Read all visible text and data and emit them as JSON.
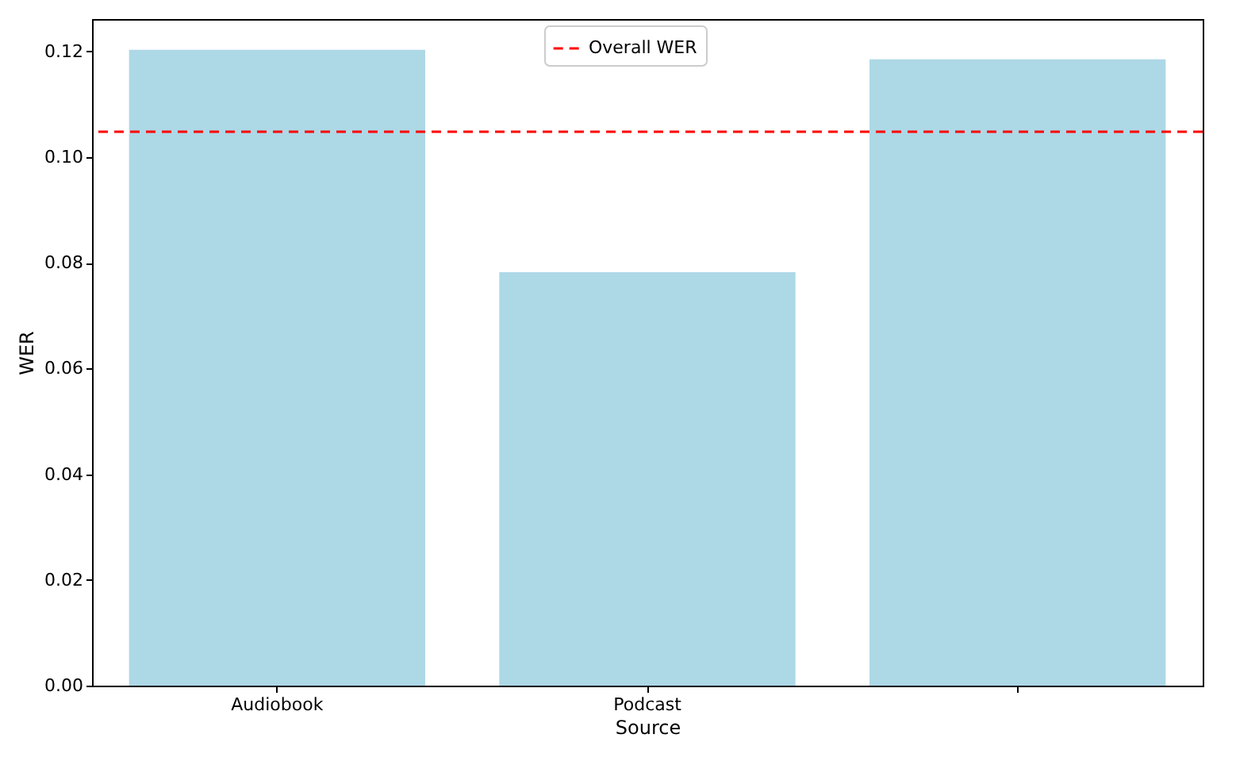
{
  "chart_data": {
    "type": "bar",
    "xlabel": "Source",
    "ylabel": "WER",
    "categories": [
      "Audiobook",
      "Podcast",
      null
    ],
    "values": [
      0.1203,
      0.0782,
      0.1185
    ],
    "color": "#add8e6",
    "ylim": [
      0,
      0.1261
    ],
    "yticks": [
      {
        "value": 0,
        "label": "0.00"
      },
      {
        "value": 0.02,
        "label": "0.02"
      },
      {
        "value": 0.04,
        "label": "0.04"
      },
      {
        "value": 0.06,
        "label": "0.06"
      },
      {
        "value": 0.08,
        "label": "0.08"
      },
      {
        "value": 0.1,
        "label": "0.10"
      },
      {
        "value": 0.12,
        "label": "0.12"
      }
    ],
    "ref_lines": [
      {
        "axis": "y",
        "value": 0.1048,
        "label": "Overall WER",
        "color": "#ff0000",
        "line_style": "dashed"
      }
    ],
    "legend": "top",
    "grid": false
  }
}
